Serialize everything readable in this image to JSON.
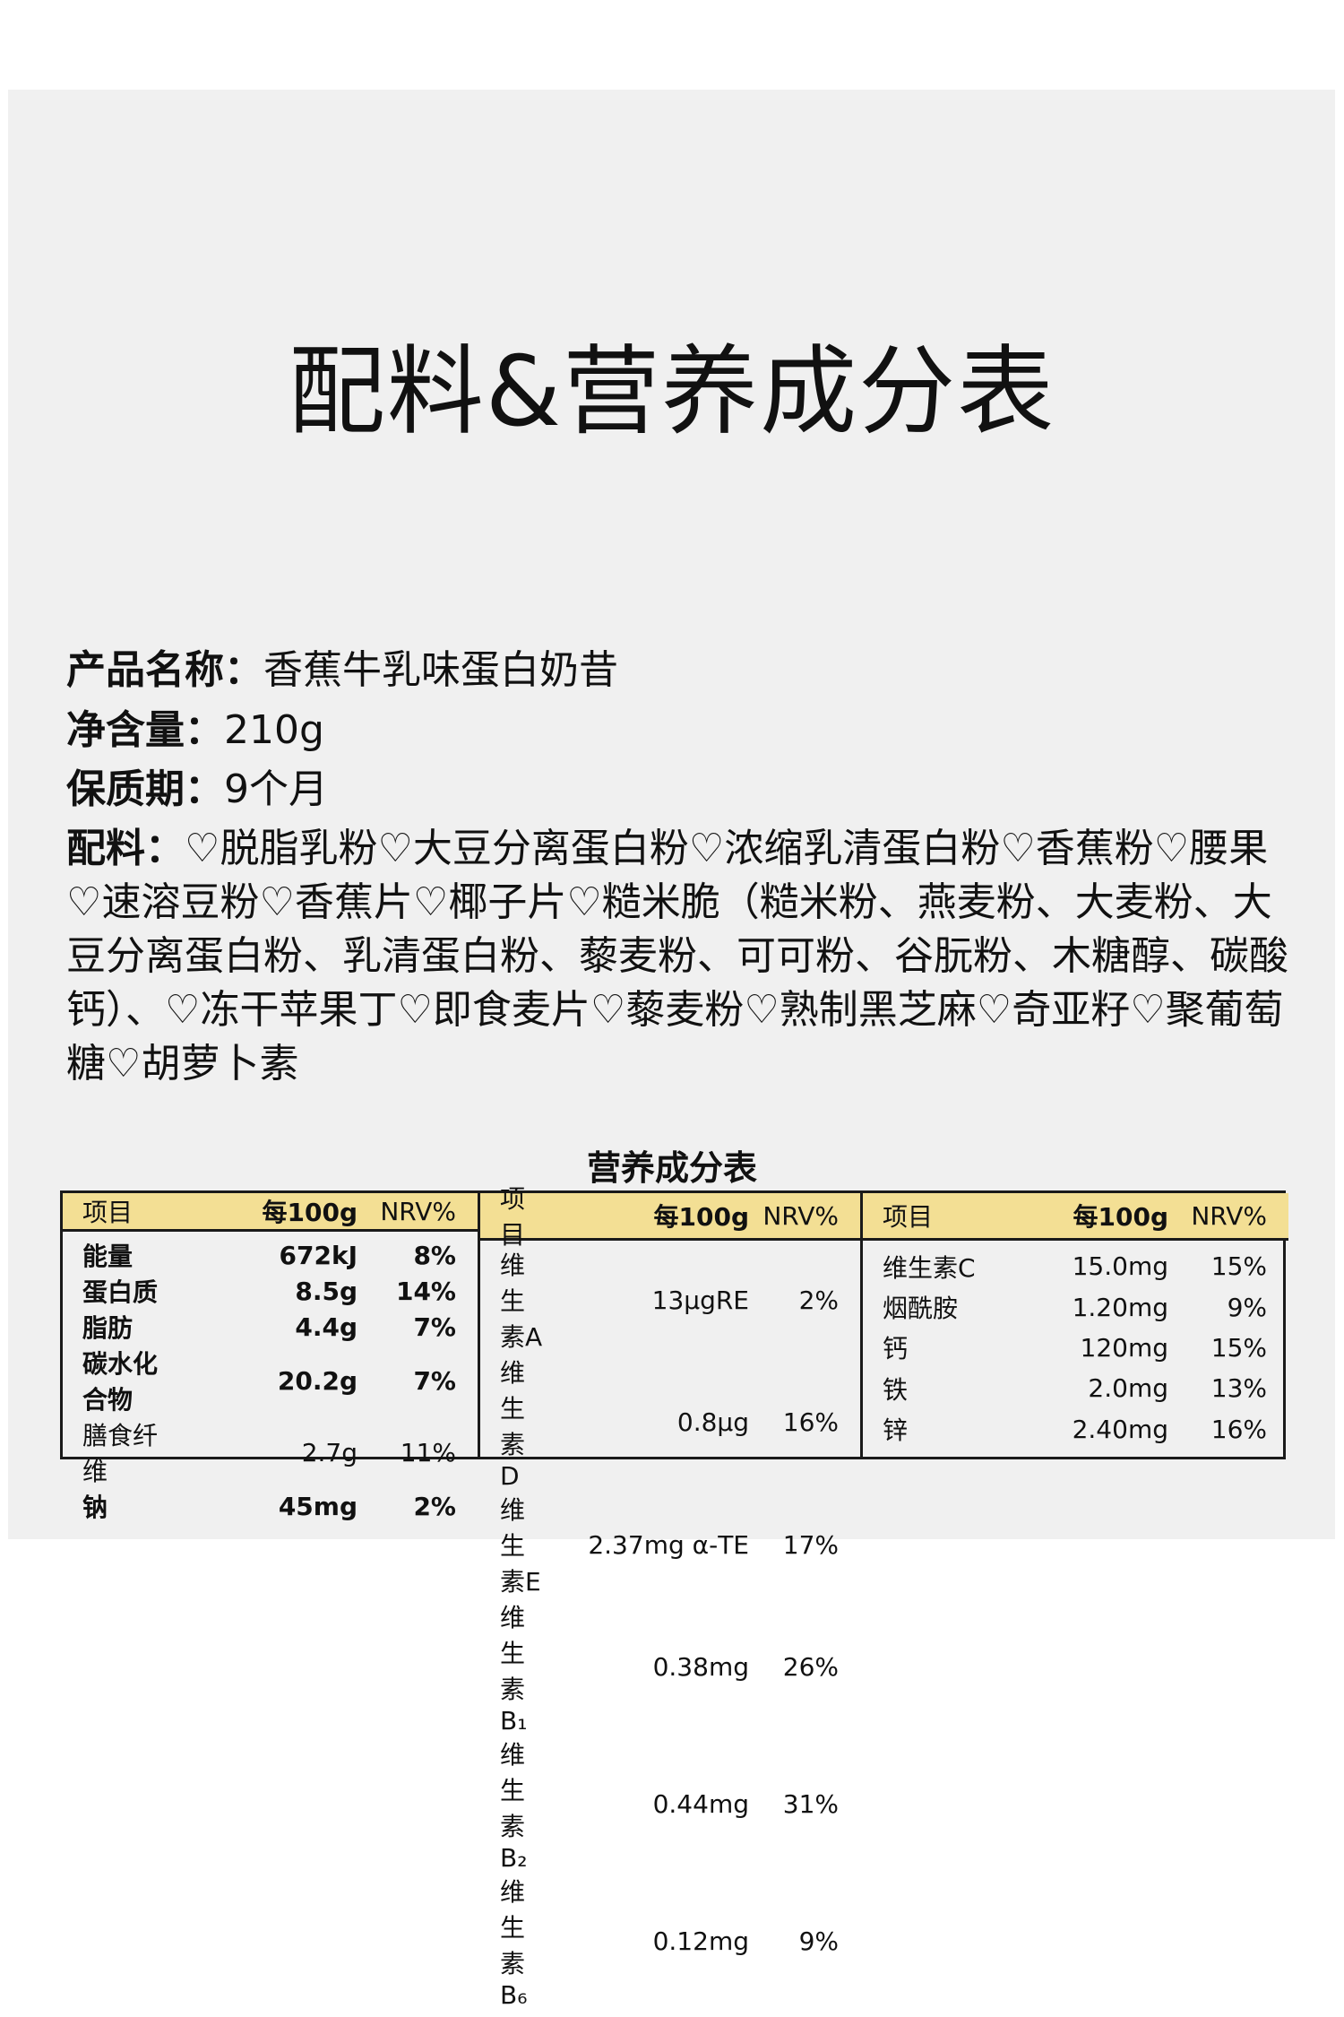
{
  "title": "配料&营养成分表",
  "info": {
    "name_label": "产品名称：",
    "name_value": "香蕉牛乳味蛋白奶昔",
    "net_label": "净含量：",
    "net_value": "210g",
    "shelf_label": "保质期：",
    "shelf_value": "9个月",
    "ingredients_label": "配料：",
    "ingredients_value": "♡脱脂乳粉♡大豆分离蛋白粉♡浓缩乳清蛋白粉♡香蕉粉♡腰果♡速溶豆粉♡香蕉片♡椰子片♡糙米脆（糙米粉、燕麦粉、大麦粉、大豆分离蛋白粉、乳清蛋白粉、藜麦粉、可可粉、谷朊粉、木糖醇、碳酸钙）、♡冻干苹果丁♡即食麦片♡藜麦粉♡熟制黑芝麻♡奇亚籽♡聚葡萄糖♡胡萝卜素"
  },
  "table": {
    "title": "营养成分表",
    "header_color": "#f3df94",
    "headers": [
      "项目",
      "每100g",
      "NRV%"
    ],
    "columns": [
      {
        "rows": [
          [
            "能量",
            "672kJ",
            "8%"
          ],
          [
            "蛋白质",
            "8.5g",
            "14%"
          ],
          [
            "脂肪",
            "4.4g",
            "7%"
          ],
          [
            "碳水化合物",
            "20.2g",
            "7%"
          ],
          [
            "膳食纤维",
            "2.7g",
            "11%"
          ],
          [
            "钠",
            "45mg",
            "2%"
          ]
        ]
      },
      {
        "rows": [
          [
            "维生素A",
            "13μgRE",
            "2%"
          ],
          [
            "维生素D",
            "0.8μg",
            "16%"
          ],
          [
            "维生素E",
            "2.37mg α-TE",
            "17%"
          ],
          [
            "维生素B₁",
            "0.38mg",
            "26%"
          ],
          [
            "维生素B₂",
            "0.44mg",
            "31%"
          ],
          [
            "维生素B₆",
            "0.12mg",
            "9%"
          ]
        ]
      },
      {
        "rows": [
          [
            "维生素C",
            "15.0mg",
            "15%"
          ],
          [
            "烟酰胺",
            "1.20mg",
            "9%"
          ],
          [
            "钙",
            "120mg",
            "15%"
          ],
          [
            "铁",
            "2.0mg",
            "13%"
          ],
          [
            "锌",
            "2.40mg",
            "16%"
          ]
        ]
      }
    ]
  }
}
